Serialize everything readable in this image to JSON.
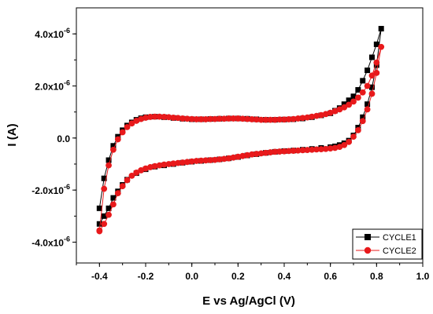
{
  "chart_data": {
    "type": "scatter",
    "title": "",
    "xlabel": "E vs Ag/AgCl (V)",
    "ylabel": "I (A)",
    "xlim": [
      -0.5,
      1.0
    ],
    "ylim": [
      -4.8e-06,
      5e-06
    ],
    "x_ticks": [
      -0.4,
      -0.2,
      0.0,
      0.2,
      0.4,
      0.6,
      0.8,
      1.0
    ],
    "x_tick_labels": [
      "-0.4",
      "-0.2",
      "0.0",
      "0.2",
      "0.4",
      "0.6",
      "0.8",
      "1.0"
    ],
    "y_ticks": [
      -4e-06,
      -2e-06,
      0,
      2e-06,
      4e-06
    ],
    "y_tick_labels": [
      {
        "base": "-4.0x10",
        "exp": "-6"
      },
      {
        "base": "-2.0x10",
        "exp": "-6"
      },
      {
        "base": "0.0",
        "exp": ""
      },
      {
        "base": "2.0x10",
        "exp": "-6"
      },
      {
        "base": "4.0x10",
        "exp": "-6"
      }
    ],
    "grid": false,
    "legend_position": "bottom-right",
    "series": [
      {
        "name": "CYCLE1",
        "color": "#000000",
        "marker": "square",
        "x": [
          -0.4,
          -0.38,
          -0.36,
          -0.34,
          -0.32,
          -0.3,
          -0.28,
          -0.26,
          -0.24,
          -0.22,
          -0.2,
          -0.16,
          -0.12,
          -0.08,
          -0.04,
          0.0,
          0.04,
          0.08,
          0.12,
          0.16,
          0.2,
          0.24,
          0.28,
          0.32,
          0.36,
          0.4,
          0.44,
          0.48,
          0.52,
          0.56,
          0.6,
          0.62,
          0.64,
          0.66,
          0.68,
          0.7,
          0.72,
          0.74,
          0.76,
          0.78,
          0.8,
          0.82,
          0.8,
          0.78,
          0.76,
          0.74,
          0.72,
          0.7,
          0.68,
          0.66,
          0.64,
          0.62,
          0.6,
          0.56,
          0.52,
          0.48,
          0.44,
          0.4,
          0.36,
          0.32,
          0.28,
          0.24,
          0.2,
          0.16,
          0.12,
          0.08,
          0.04,
          0.0,
          -0.04,
          -0.08,
          -0.12,
          -0.16,
          -0.2,
          -0.24,
          -0.28,
          -0.3,
          -0.32,
          -0.34,
          -0.36,
          -0.38,
          -0.4
        ],
        "y": [
          -2.7e-06,
          -1.55e-06,
          -8.5e-07,
          -3e-07,
          5e-08,
          3e-07,
          4.8e-07,
          6e-07,
          7e-07,
          7.6e-07,
          8e-07,
          8.2e-07,
          8e-07,
          7.7e-07,
          7.4e-07,
          7.2e-07,
          7.2e-07,
          7.3e-07,
          7.4e-07,
          7.5e-07,
          7.5e-07,
          7.4e-07,
          7.2e-07,
          7e-07,
          7e-07,
          7.1e-07,
          7.2e-07,
          7.5e-07,
          8e-07,
          8.7e-07,
          9.5e-07,
          1.05e-06,
          1.15e-06,
          1.3e-06,
          1.45e-06,
          1.6e-06,
          1.85e-06,
          2.2e-06,
          2.6e-06,
          3.1e-06,
          3.6e-06,
          4.2e-06,
          2.8e-06,
          1.95e-06,
          1.3e-06,
          8e-07,
          4e-07,
          1e-07,
          -1e-07,
          -2e-07,
          -2.7e-07,
          -3.2e-07,
          -3.5e-07,
          -3.8e-07,
          -4.2e-07,
          -4.5e-07,
          -4.8e-07,
          -5e-07,
          -5.3e-07,
          -5.7e-07,
          -6.2e-07,
          -6.7e-07,
          -7.3e-07,
          -7.8e-07,
          -8.2e-07,
          -8.5e-07,
          -8.8e-07,
          -9.1e-07,
          -9.5e-07,
          -1e-06,
          -1.05e-06,
          -1.1e-06,
          -1.2e-06,
          -1.35e-06,
          -1.6e-06,
          -1.8e-06,
          -2.05e-06,
          -2.3e-06,
          -2.7e-06,
          -3e-06,
          -3.3e-06
        ]
      },
      {
        "name": "CYCLE2",
        "color": "#e8191b",
        "marker": "circle",
        "x": [
          -0.4,
          -0.38,
          -0.36,
          -0.34,
          -0.32,
          -0.3,
          -0.28,
          -0.26,
          -0.24,
          -0.22,
          -0.2,
          -0.18,
          -0.16,
          -0.14,
          -0.12,
          -0.1,
          -0.08,
          -0.06,
          -0.04,
          -0.02,
          0.0,
          0.02,
          0.04,
          0.06,
          0.08,
          0.1,
          0.12,
          0.14,
          0.16,
          0.18,
          0.2,
          0.22,
          0.24,
          0.26,
          0.28,
          0.3,
          0.32,
          0.34,
          0.36,
          0.38,
          0.4,
          0.42,
          0.44,
          0.46,
          0.48,
          0.5,
          0.52,
          0.54,
          0.56,
          0.58,
          0.6,
          0.62,
          0.64,
          0.66,
          0.68,
          0.7,
          0.72,
          0.74,
          0.76,
          0.78,
          0.8,
          0.82,
          0.8,
          0.78,
          0.76,
          0.74,
          0.72,
          0.7,
          0.68,
          0.66,
          0.64,
          0.62,
          0.6,
          0.58,
          0.56,
          0.54,
          0.52,
          0.5,
          0.48,
          0.46,
          0.44,
          0.42,
          0.4,
          0.38,
          0.36,
          0.34,
          0.32,
          0.3,
          0.28,
          0.26,
          0.24,
          0.22,
          0.2,
          0.18,
          0.16,
          0.14,
          0.12,
          0.1,
          0.08,
          0.06,
          0.04,
          0.02,
          0.0,
          -0.02,
          -0.04,
          -0.06,
          -0.08,
          -0.1,
          -0.12,
          -0.14,
          -0.16,
          -0.18,
          -0.2,
          -0.22,
          -0.24,
          -0.26,
          -0.28,
          -0.3,
          -0.32,
          -0.34,
          -0.36,
          -0.38,
          -0.4
        ],
        "y": [
          -3.55e-06,
          -1.95e-06,
          -1.05e-06,
          -4.5e-07,
          -5e-08,
          2.2e-07,
          4.2e-07,
          5.6e-07,
          6.6e-07,
          7.3e-07,
          7.8e-07,
          8.1e-07,
          8.2e-07,
          8.2e-07,
          8.1e-07,
          8e-07,
          7.8e-07,
          7.7e-07,
          7.5e-07,
          7.4e-07,
          7.3e-07,
          7.2e-07,
          7.2e-07,
          7.2e-07,
          7.3e-07,
          7.3e-07,
          7.4e-07,
          7.4e-07,
          7.5e-07,
          7.5e-07,
          7.5e-07,
          7.4e-07,
          7.3e-07,
          7.2e-07,
          7.1e-07,
          7e-07,
          7e-07,
          7e-07,
          7e-07,
          7.1e-07,
          7.1e-07,
          7.2e-07,
          7.3e-07,
          7.5e-07,
          7.7e-07,
          7.9e-07,
          8.2e-07,
          8.5e-07,
          8.8e-07,
          9.2e-07,
          9.7e-07,
          1.03e-06,
          1.1e-06,
          1.18e-06,
          1.28e-06,
          1.4e-06,
          1.55e-06,
          1.75e-06,
          2e-06,
          2.4e-06,
          2.9e-06,
          3.5e-06,
          2.5e-06,
          1.7e-06,
          1.1e-06,
          6.5e-07,
          3e-07,
          5e-08,
          -1.5e-07,
          -2.7e-07,
          -3.4e-07,
          -3.8e-07,
          -4e-07,
          -4.2e-07,
          -4.3e-07,
          -4.4e-07,
          -4.5e-07,
          -4.6e-07,
          -4.7e-07,
          -4.8e-07,
          -4.9e-07,
          -5e-07,
          -5.1e-07,
          -5.2e-07,
          -5.3e-07,
          -5.5e-07,
          -5.7e-07,
          -5.9e-07,
          -6.1e-07,
          -6.3e-07,
          -6.6e-07,
          -6.9e-07,
          -7.2e-07,
          -7.5e-07,
          -7.8e-07,
          -8e-07,
          -8.2e-07,
          -8.4e-07,
          -8.5e-07,
          -8.6e-07,
          -8.7e-07,
          -8.8e-07,
          -9e-07,
          -9.2e-07,
          -9.4e-07,
          -9.6e-07,
          -9.8e-07,
          -1e-06,
          -1.02e-06,
          -1.05e-06,
          -1.08e-06,
          -1.12e-06,
          -1.17e-06,
          -1.24e-06,
          -1.33e-06,
          -1.45e-06,
          -1.62e-06,
          -1.85e-06,
          -2.12e-06,
          -2.55e-06,
          -2.95e-06,
          -3.3e-06,
          -3.58e-06
        ]
      }
    ]
  }
}
